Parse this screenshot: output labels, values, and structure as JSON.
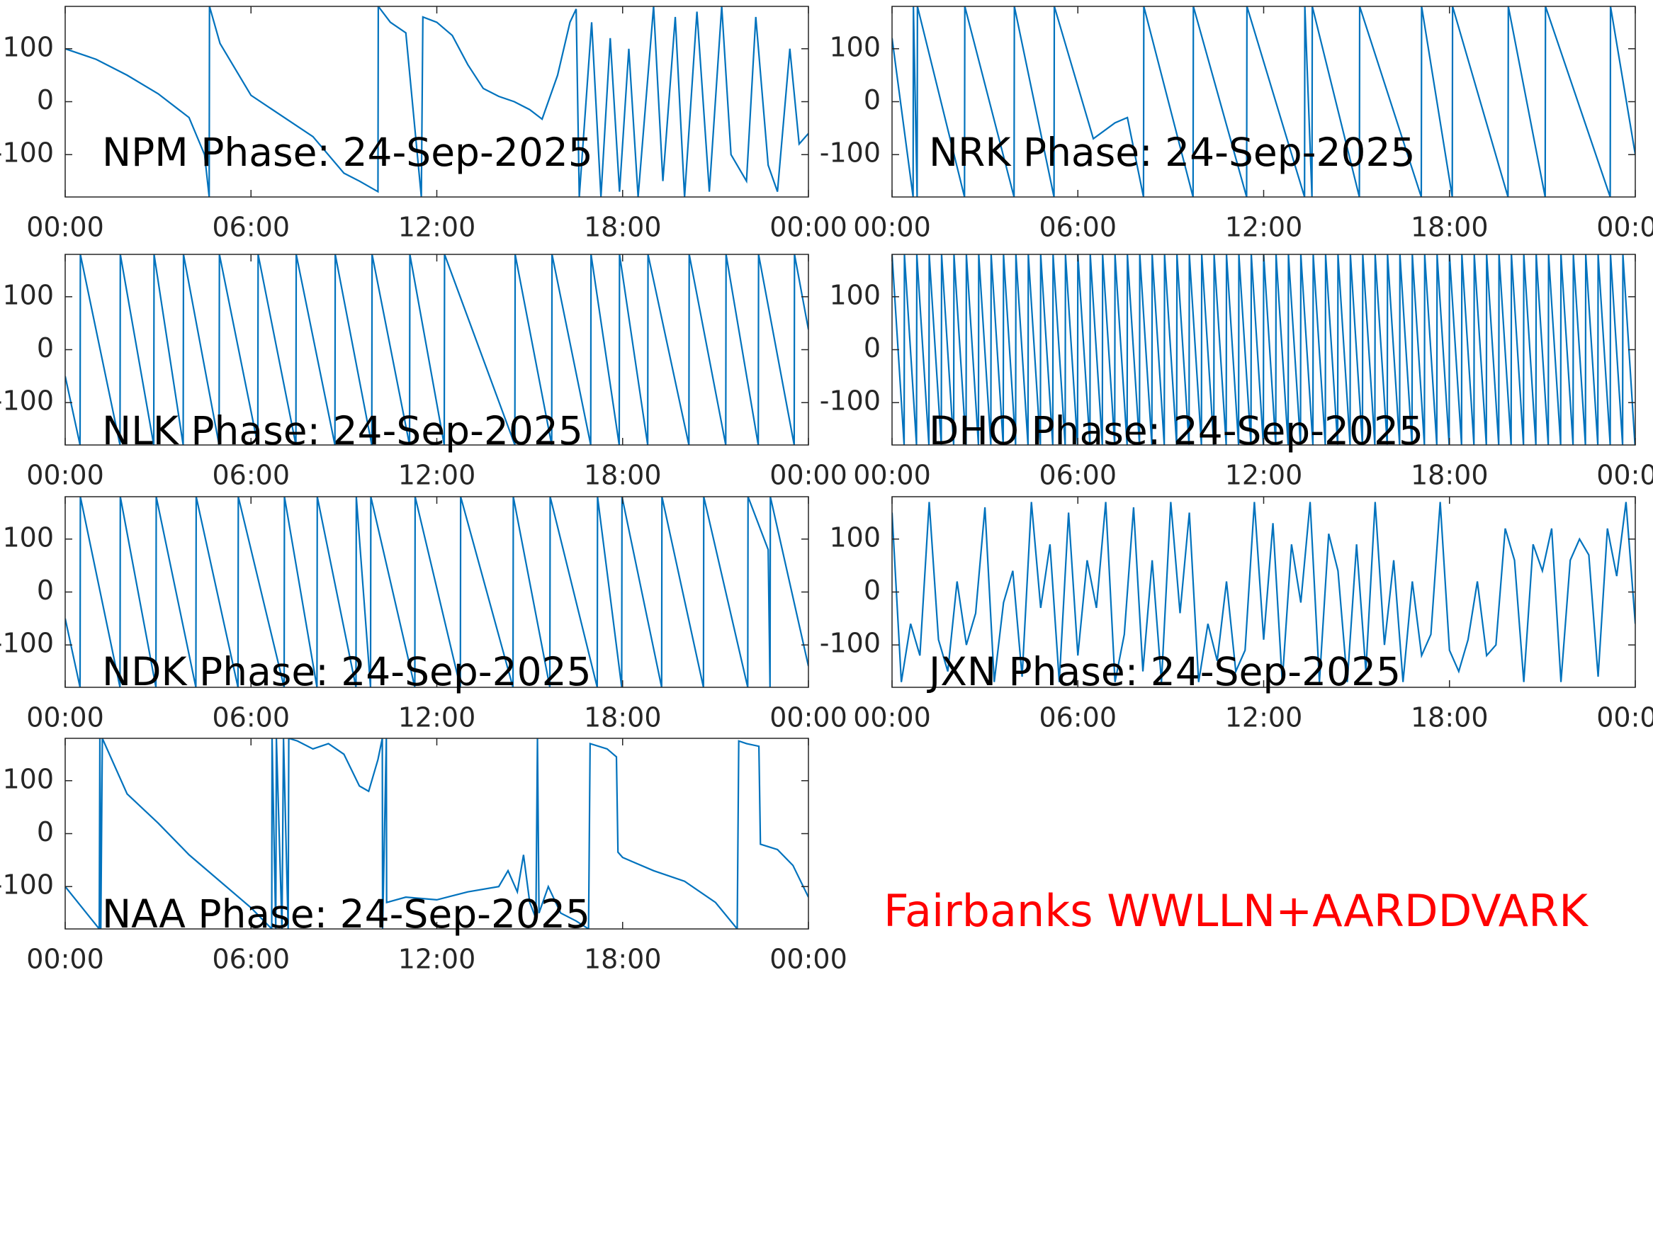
{
  "chart_data": [
    {
      "type": "line",
      "title": "NPM Phase: 24-Sep-2025",
      "x": [
        0,
        1,
        2,
        3,
        4,
        4.5,
        4.65,
        4.66,
        5,
        6,
        7,
        8,
        9,
        9.5,
        10.1,
        10.11,
        10.5,
        11,
        11.5,
        11.55,
        12,
        12.5,
        13,
        13.5,
        14,
        14.5,
        15,
        15.4,
        15.9,
        16.3,
        16.5,
        16.6,
        17,
        17.3,
        17.6,
        17.9,
        18.2,
        18.5,
        19,
        19.3,
        19.7,
        20,
        20.4,
        20.8,
        21.2,
        21.5,
        22,
        22.3,
        22.7,
        23,
        23.4,
        23.7,
        24
      ],
      "series": [
        {
          "color": "#0072bd",
          "values": [
            100,
            80,
            50,
            15,
            -30,
            -100,
            -180,
            180,
            110,
            12,
            -27,
            -66,
            -135,
            -150,
            -170,
            180,
            150,
            130,
            -180,
            160,
            150,
            125,
            70,
            25,
            10,
            0,
            -15,
            -33,
            50,
            150,
            175,
            -180,
            150,
            -180,
            120,
            -170,
            100,
            -180,
            180,
            -150,
            160,
            -180,
            170,
            -170,
            180,
            -100,
            -150,
            160,
            -120,
            -170,
            100,
            -80,
            -60
          ]
        }
      ],
      "xlim": [
        0,
        24
      ],
      "xticks": [
        {
          "value": 0,
          "label": "00:00"
        },
        {
          "value": 6,
          "label": "06:00"
        },
        {
          "value": 12,
          "label": "12:00"
        },
        {
          "value": 18,
          "label": "18:00"
        },
        {
          "value": 24,
          "label": "00:00"
        }
      ],
      "ylim": [
        -180,
        180
      ],
      "yticks": [
        -100,
        0,
        100
      ]
    },
    {
      "type": "line",
      "title": "NRK Phase: 24-Sep-2025",
      "x": [
        0,
        0.68,
        0.69,
        0.81,
        0.82,
        2.34,
        2.35,
        3.94,
        3.95,
        5.23,
        5.24,
        6.5,
        7.2,
        7.6,
        8.12,
        8.13,
        9.72,
        9.73,
        11.45,
        11.46,
        13.32,
        13.33,
        13.56,
        13.57,
        15.09,
        15.1,
        17.09,
        17.1,
        18.09,
        18.1,
        19.89,
        19.9,
        21.09,
        21.1,
        23.19,
        23.2,
        24
      ],
      "series": [
        {
          "color": "#0072bd",
          "values": [
            120,
            -180,
            180,
            -180,
            180,
            -180,
            180,
            -180,
            180,
            -180,
            180,
            -70,
            -40,
            -30,
            -180,
            180,
            -180,
            180,
            -180,
            180,
            -180,
            180,
            -180,
            180,
            -180,
            180,
            -180,
            180,
            -180,
            180,
            -180,
            180,
            -180,
            180,
            -180,
            180,
            -100
          ]
        }
      ],
      "xlim": [
        0,
        24
      ],
      "xticks": [
        {
          "value": 0,
          "label": "00:00"
        },
        {
          "value": 6,
          "label": "06:00"
        },
        {
          "value": 12,
          "label": "12:00"
        },
        {
          "value": 18,
          "label": "18:00"
        },
        {
          "value": 24,
          "label": "00:00"
        }
      ],
      "ylim": [
        -180,
        180
      ],
      "yticks": [
        -100,
        0,
        100
      ]
    },
    {
      "type": "line",
      "title": "NLK Phase: 24-Sep-2025",
      "x": [
        0,
        0.48,
        0.49,
        1.77,
        1.78,
        2.86,
        2.87,
        3.81,
        3.82,
        4.97,
        4.98,
        6.22,
        6.23,
        7.45,
        7.46,
        8.71,
        8.72,
        9.9,
        9.91,
        11.12,
        11.13,
        12.24,
        12.25,
        14.52,
        14.53,
        15.71,
        15.72,
        16.97,
        16.98,
        17.89,
        17.9,
        18.81,
        18.82,
        20.14,
        20.15,
        21.33,
        21.34,
        22.38,
        22.39,
        23.54,
        23.55,
        24
      ],
      "series": [
        {
          "color": "#0072bd",
          "values": [
            -50,
            -180,
            180,
            -180,
            180,
            -180,
            180,
            -180,
            180,
            -180,
            180,
            -180,
            180,
            -180,
            180,
            -180,
            180,
            -180,
            180,
            -180,
            180,
            -180,
            180,
            -180,
            180,
            -180,
            180,
            -180,
            180,
            -180,
            180,
            -180,
            180,
            -180,
            180,
            -180,
            180,
            -180,
            180,
            -180,
            180,
            38
          ]
        }
      ],
      "xlim": [
        0,
        24
      ],
      "xticks": [
        {
          "value": 0,
          "label": "00:00"
        },
        {
          "value": 6,
          "label": "06:00"
        },
        {
          "value": 12,
          "label": "12:00"
        },
        {
          "value": 18,
          "label": "18:00"
        },
        {
          "value": 24,
          "label": "00:00"
        }
      ],
      "ylim": [
        -180,
        180
      ],
      "yticks": [
        -100,
        0,
        100
      ]
    },
    {
      "type": "line",
      "title": "DHO Phase: 24-Sep-2025",
      "x": [
        0,
        0.39,
        0.4,
        0.79,
        0.8,
        1.19,
        1.2,
        1.59,
        1.6,
        1.99,
        2,
        2.39,
        2.4,
        2.79,
        2.8,
        3.19,
        3.2,
        3.59,
        3.6,
        3.99,
        4,
        4.39,
        4.4,
        4.79,
        4.8,
        5.19,
        5.2,
        5.59,
        5.6,
        5.99,
        6,
        6.39,
        6.4,
        6.79,
        6.8,
        7.19,
        7.2,
        7.59,
        7.6,
        7.99,
        8,
        8.39,
        8.4,
        8.79,
        8.8,
        9.19,
        9.2,
        9.59,
        9.6,
        9.99,
        10,
        10.39,
        10.4,
        10.79,
        10.8,
        11.19,
        11.2,
        11.59,
        11.6,
        11.99,
        12,
        12.39,
        12.4,
        12.79,
        12.8,
        13.19,
        13.2,
        13.59,
        13.6,
        13.99,
        14,
        14.39,
        14.4,
        14.79,
        14.8,
        15.19,
        15.2,
        15.59,
        15.6,
        15.99,
        16,
        16.39,
        16.4,
        16.79,
        16.8,
        17.19,
        17.2,
        17.59,
        17.6,
        17.99,
        18,
        18.39,
        18.4,
        18.79,
        18.8,
        19.19,
        19.2,
        19.59,
        19.6,
        19.99,
        20,
        20.39,
        20.4,
        20.79,
        20.8,
        21.19,
        21.2,
        21.59,
        21.6,
        21.99,
        22,
        22.39,
        22.4,
        22.79,
        22.8,
        23.19,
        23.2,
        23.59,
        23.6,
        23.99
      ],
      "series": [
        {
          "color": "#0072bd",
          "values": [
            180,
            -180,
            180,
            -180,
            180,
            -180,
            180,
            -180,
            180,
            -180,
            180,
            -180,
            180,
            -180,
            180,
            -180,
            180,
            -180,
            180,
            -180,
            180,
            -180,
            180,
            -180,
            180,
            -180,
            180,
            -180,
            180,
            -180,
            180,
            -180,
            180,
            -180,
            180,
            -180,
            180,
            -180,
            180,
            -180,
            180,
            -180,
            180,
            -180,
            180,
            -180,
            180,
            -180,
            180,
            -180,
            180,
            -180,
            180,
            -180,
            180,
            -180,
            180,
            -180,
            180,
            -180,
            180,
            -180,
            180,
            -180,
            180,
            -180,
            180,
            -180,
            180,
            -180,
            180,
            -180,
            180,
            -180,
            180,
            -180,
            180,
            -180,
            180,
            -180,
            180,
            -180,
            180,
            -180,
            180,
            -180,
            180,
            -180,
            180,
            -180,
            180,
            -180,
            180,
            -180,
            180,
            -180,
            180,
            -180,
            180,
            -180,
            180,
            -180,
            180,
            -180,
            180,
            -180,
            180,
            -180,
            180,
            -180,
            180,
            -180,
            180,
            -180,
            180,
            -180,
            180,
            -180,
            180,
            -180
          ]
        }
      ],
      "xlim": [
        0,
        24
      ],
      "xticks": [
        {
          "value": 0,
          "label": "00:00"
        },
        {
          "value": 6,
          "label": "06:00"
        },
        {
          "value": 12,
          "label": "12:00"
        },
        {
          "value": 18,
          "label": "18:00"
        },
        {
          "value": 24,
          "label": "00:00"
        }
      ],
      "ylim": [
        -180,
        180
      ],
      "yticks": [
        -100,
        0,
        100
      ]
    },
    {
      "type": "line",
      "title": "NDK Phase: 24-Sep-2025",
      "x": [
        0,
        0.48,
        0.49,
        1.77,
        1.78,
        2.93,
        2.94,
        4.22,
        4.23,
        5.58,
        5.59,
        7.07,
        7.08,
        8.13,
        8.14,
        9.39,
        9.4,
        9.86,
        9.87,
        11.29,
        11.3,
        12.76,
        12.77,
        14.46,
        14.47,
        15.65,
        15.66,
        17.18,
        17.19,
        17.97,
        17.98,
        19.26,
        19.27,
        20.61,
        20.62,
        22.04,
        22.05,
        22.7,
        22.76,
        22.77,
        24
      ],
      "series": [
        {
          "color": "#0072bd",
          "values": [
            -50,
            -180,
            180,
            -180,
            180,
            -180,
            180,
            -180,
            180,
            -180,
            180,
            -180,
            180,
            -180,
            180,
            -180,
            180,
            -180,
            180,
            -180,
            180,
            -180,
            180,
            -180,
            180,
            -180,
            180,
            -180,
            180,
            -180,
            180,
            -180,
            180,
            -180,
            180,
            -180,
            180,
            80,
            -180,
            180,
            -140
          ]
        }
      ],
      "xlim": [
        0,
        24
      ],
      "xticks": [
        {
          "value": 0,
          "label": "00:00"
        },
        {
          "value": 6,
          "label": "06:00"
        },
        {
          "value": 12,
          "label": "12:00"
        },
        {
          "value": 18,
          "label": "18:00"
        },
        {
          "value": 24,
          "label": "00:00"
        }
      ],
      "ylim": [
        -180,
        180
      ],
      "yticks": [
        -100,
        0,
        100
      ]
    },
    {
      "type": "line",
      "title": "JXN Phase: 24-Sep-2025",
      "x": [
        0,
        0.3,
        0.6,
        0.9,
        1.2,
        1.5,
        1.8,
        2.1,
        2.4,
        2.7,
        3,
        3.3,
        3.6,
        3.9,
        4.2,
        4.5,
        4.8,
        5.1,
        5.4,
        5.7,
        6,
        6.3,
        6.6,
        6.9,
        7.2,
        7.5,
        7.8,
        8.1,
        8.4,
        8.7,
        9,
        9.3,
        9.6,
        9.9,
        10.2,
        10.5,
        10.8,
        11.1,
        11.4,
        11.7,
        12,
        12.3,
        12.6,
        12.9,
        13.2,
        13.5,
        13.8,
        14.1,
        14.4,
        14.7,
        15,
        15.3,
        15.6,
        15.9,
        16.2,
        16.5,
        16.8,
        17.1,
        17.4,
        17.7,
        18,
        18.3,
        18.6,
        18.9,
        19.2,
        19.5,
        19.8,
        20.1,
        20.4,
        20.7,
        21,
        21.3,
        21.6,
        21.9,
        22.2,
        22.5,
        22.8,
        23.1,
        23.4,
        23.7,
        24
      ],
      "series": [
        {
          "color": "#0072bd",
          "values": [
            150,
            -170,
            -60,
            -120,
            170,
            -90,
            -150,
            20,
            -100,
            -40,
            160,
            -170,
            -20,
            40,
            -160,
            170,
            -30,
            90,
            -170,
            150,
            -120,
            60,
            -30,
            170,
            -170,
            -80,
            160,
            -150,
            60,
            -170,
            170,
            -40,
            150,
            -170,
            -60,
            -130,
            20,
            -150,
            -110,
            170,
            -90,
            130,
            -170,
            90,
            -20,
            170,
            -170,
            110,
            40,
            -170,
            90,
            -150,
            170,
            -100,
            60,
            -170,
            20,
            -120,
            -80,
            170,
            -110,
            -150,
            -90,
            20,
            -120,
            -100,
            120,
            60,
            -170,
            90,
            40,
            120,
            -170,
            60,
            100,
            70,
            -160,
            120,
            30,
            170,
            -60
          ]
        }
      ],
      "xlim": [
        0,
        24
      ],
      "xticks": [
        {
          "value": 0,
          "label": "00:00"
        },
        {
          "value": 6,
          "label": "06:00"
        },
        {
          "value": 12,
          "label": "12:00"
        },
        {
          "value": 18,
          "label": "18:00"
        },
        {
          "value": 24,
          "label": "00:00"
        }
      ],
      "ylim": [
        -180,
        180
      ],
      "yticks": [
        -100,
        0,
        100
      ]
    },
    {
      "type": "line",
      "title": "NAA Phase: 24-Sep-2025",
      "x": [
        0,
        1.1,
        1.12,
        1.15,
        1.2,
        2,
        3,
        4,
        5,
        6,
        6.67,
        6.68,
        6.8,
        6.82,
        7,
        7.05,
        7.2,
        7.22,
        7.5,
        8,
        8.5,
        9,
        9.5,
        9.8,
        10.1,
        10.24,
        10.25,
        10.37,
        10.38,
        11,
        12,
        13,
        14,
        14.3,
        14.6,
        14.8,
        15,
        15.2,
        15.25,
        15.3,
        15.6,
        16,
        16.5,
        16.9,
        16.95,
        17.5,
        17.8,
        17.85,
        18,
        19,
        20,
        21,
        21.7,
        21.75,
        22,
        22.4,
        22.45,
        23,
        23.5,
        24
      ],
      "series": [
        {
          "color": "#0072bd",
          "values": [
            -100,
            -180,
            180,
            -180,
            180,
            75,
            20,
            -40,
            -90,
            -140,
            -180,
            180,
            -180,
            180,
            -180,
            180,
            -180,
            180,
            175,
            160,
            170,
            150,
            90,
            80,
            140,
            180,
            -180,
            180,
            -130,
            -120,
            -125,
            -110,
            -100,
            -70,
            -110,
            -40,
            -130,
            -160,
            180,
            -150,
            -100,
            -150,
            -165,
            -180,
            170,
            160,
            145,
            -35,
            -45,
            -70,
            -90,
            -130,
            -180,
            175,
            170,
            165,
            -20,
            -30,
            -60,
            -120
          ]
        }
      ],
      "xlim": [
        0,
        24
      ],
      "xticks": [
        {
          "value": 0,
          "label": "00:00"
        },
        {
          "value": 6,
          "label": "06:00"
        },
        {
          "value": 12,
          "label": "12:00"
        },
        {
          "value": 18,
          "label": "18:00"
        },
        {
          "value": 24,
          "label": "00:00"
        }
      ],
      "ylim": [
        -180,
        180
      ],
      "yticks": [
        -100,
        0,
        100
      ]
    }
  ],
  "annotation": {
    "text": "Fairbanks WWLLN+AARDDVARK",
    "color": "#ff0000"
  }
}
